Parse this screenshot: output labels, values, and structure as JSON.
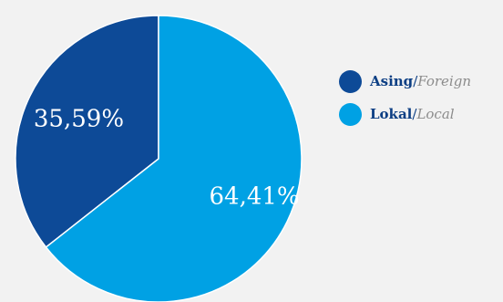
{
  "chart_data": {
    "type": "pie",
    "categories": [
      "Asing/Foreign",
      "Lokal / Local"
    ],
    "values": [
      35.59,
      64.41
    ],
    "slice_labels": [
      "35,59%",
      "64,41%"
    ],
    "colors": [
      "#0d4a97",
      "#00a1e4"
    ],
    "title": "",
    "legend_placement": "right"
  },
  "legend": {
    "items": [
      {
        "main": "Asing",
        "sep": "/",
        "alt": "Foreign",
        "color": "#0d4a97"
      },
      {
        "main": "Lokal",
        "sep": " / ",
        "alt": "Local",
        "color": "#00a1e4"
      }
    ]
  }
}
